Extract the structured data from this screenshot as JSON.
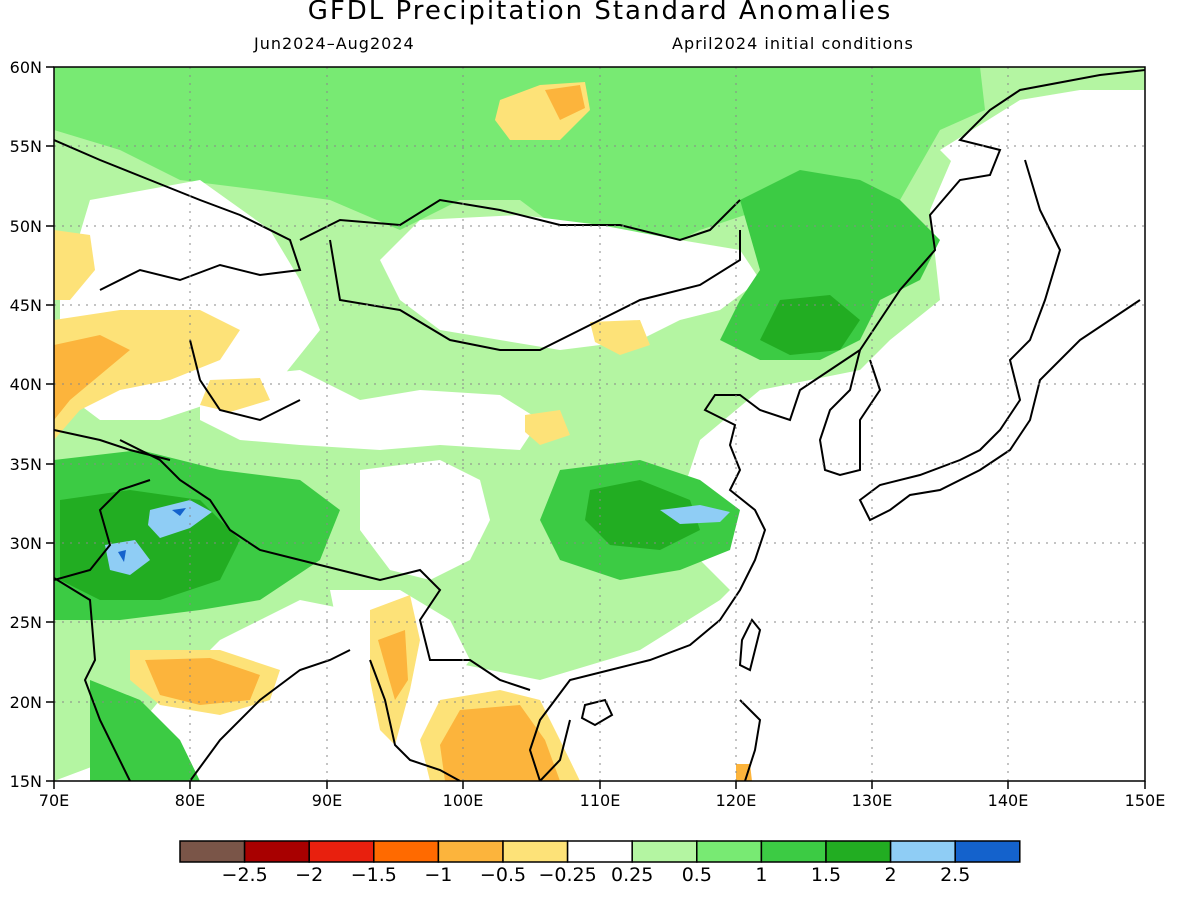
{
  "title": "GFDL Precipitation Standard Anomalies",
  "subtitle_left": "Jun2024–Aug2024",
  "subtitle_right": "April2024 initial conditions",
  "map": {
    "lon_range": [
      70,
      150
    ],
    "lat_range": [
      15,
      60
    ],
    "lon_ticks": [
      "70E",
      "80E",
      "90E",
      "100E",
      "110E",
      "120E",
      "130E",
      "140E",
      "150E"
    ],
    "lat_ticks": [
      "60N",
      "55N",
      "50N",
      "45N",
      "40N",
      "35N",
      "30N",
      "25N",
      "20N",
      "15N"
    ],
    "grid": true
  },
  "legend": {
    "colors": [
      "#7a5548",
      "#a80000",
      "#e8200e",
      "#ff6a00",
      "#fcb43c",
      "#fde278",
      "#ffffff",
      "#b4f5a2",
      "#78ea73",
      "#3ccb44",
      "#22ad22",
      "#8fcdf5",
      "#1462cc"
    ],
    "labels": [
      "−2.5",
      "−2",
      "−1.5",
      "−1",
      "−0.5",
      "−0.25",
      "0.25",
      "0.5",
      "1",
      "1.5",
      "2",
      "2.5"
    ]
  },
  "colors": {
    "wet_light": "#b4f5a2",
    "wet_mid": "#78ea73",
    "wet_strong": "#3ccb44",
    "wet_very": "#22ad22",
    "wet_extreme": "#8fcdf5",
    "wet_max": "#1462cc",
    "dry_light": "#fde278",
    "dry_mid": "#fcb43c",
    "dry_strong": "#ff6a00"
  }
}
